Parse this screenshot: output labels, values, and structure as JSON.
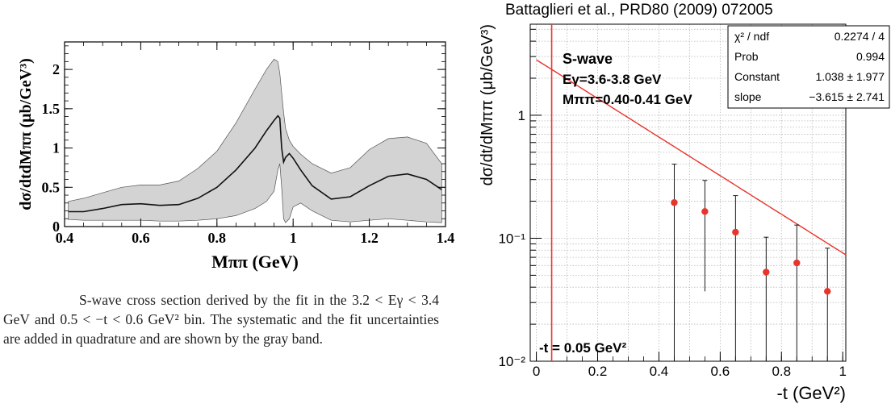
{
  "caption": {
    "line1": "S-wave cross section derived by the fit in the 3.2 <",
    "line2": "Eγ < 3.4 GeV and 0.5 < −t < 0.6 GeV² bin. The systematic",
    "line3": "and the fit uncertainties are added in quadrature and are shown",
    "line4": "by the gray band."
  },
  "chart_data": [
    {
      "type": "line",
      "xlabel": "Mππ (GeV)",
      "ylabel": "dσ/dtdMππ (μb/GeV³)",
      "xlim": [
        0.4,
        1.4
      ],
      "ylim": [
        0,
        2.35
      ],
      "xticks": [
        0.4,
        0.6,
        0.8,
        1,
        1.2,
        1.4
      ],
      "xtick_labels": [
        "0.4",
        "0.6",
        "0.8",
        "1",
        "1.2",
        "1.4"
      ],
      "yticks": [
        0,
        0.5,
        1,
        1.5,
        2
      ],
      "ytick_labels": [
        "0",
        "0.5",
        "1",
        "1.5",
        "2"
      ],
      "grid": false,
      "colors": {
        "band": "#d3d3d3",
        "line": "#111111"
      },
      "series": [
        {
          "x": [
            0.41,
            0.45,
            0.5,
            0.55,
            0.6,
            0.65,
            0.7,
            0.75,
            0.8,
            0.85,
            0.9,
            0.93,
            0.95,
            0.96,
            0.965,
            0.97,
            0.975,
            0.98,
            0.99,
            1.0,
            1.02,
            1.05,
            1.1,
            1.15,
            1.2,
            1.25,
            1.3,
            1.35,
            1.39
          ],
          "y": [
            0.19,
            0.19,
            0.23,
            0.28,
            0.29,
            0.27,
            0.28,
            0.36,
            0.5,
            0.72,
            1.0,
            1.22,
            1.35,
            1.41,
            1.38,
            1.0,
            0.82,
            0.88,
            0.93,
            0.87,
            0.72,
            0.52,
            0.35,
            0.38,
            0.52,
            0.64,
            0.67,
            0.6,
            0.47
          ],
          "band_lower": [
            0.09,
            0.08,
            0.08,
            0.08,
            0.08,
            0.07,
            0.07,
            0.08,
            0.1,
            0.14,
            0.23,
            0.32,
            0.45,
            0.72,
            0.8,
            0.5,
            0.1,
            0.05,
            0.1,
            0.25,
            0.3,
            0.2,
            0.08,
            0.06,
            0.08,
            0.1,
            0.08,
            0.06,
            0.05
          ],
          "band_upper": [
            0.32,
            0.36,
            0.43,
            0.5,
            0.53,
            0.53,
            0.58,
            0.74,
            0.96,
            1.32,
            1.75,
            2.0,
            2.13,
            2.1,
            1.95,
            1.7,
            1.45,
            1.25,
            1.1,
            1.02,
            0.92,
            0.8,
            0.68,
            0.75,
            0.98,
            1.12,
            1.14,
            1.06,
            0.8
          ]
        }
      ]
    },
    {
      "type": "scatter",
      "title": "Battaglieri et al., PRD80 (2009) 072005",
      "xlabel": "-t (GeV²)",
      "ylabel": "dσ/dt/dMππ (μb/GeV³)",
      "xlim": [
        -0.02,
        1.01
      ],
      "ylim": [
        0.01,
        5.5
      ],
      "yscale": "log",
      "xticks": [
        0,
        0.2,
        0.4,
        0.6,
        0.8,
        1
      ],
      "xtick_labels": [
        "0",
        "0.2",
        "0.4",
        "0.6",
        "0.8",
        "1"
      ],
      "ytick_labels": {
        "1e-2": "10⁻²",
        "1e-1": "10⁻¹",
        "1": "1"
      },
      "grid": true,
      "colors": {
        "points": "#e8352b",
        "fit": "#e8352b",
        "cut_line": "#e8352b",
        "grid": "#b8b8b8"
      },
      "annotations": {
        "line1": "S-wave",
        "line2": "Eγ=3.6-3.8 GeV",
        "line3": "Mππ=0.40-0.41 GeV",
        "cut": "-t = 0.05 GeV²"
      },
      "cut_x": 0.05,
      "fit": {
        "constant": 1.038,
        "slope": -3.615
      },
      "stats_box": [
        {
          "name": "χ² / ndf",
          "value": "0.2274 / 4"
        },
        {
          "name": "Prob",
          "value": "0.994"
        },
        {
          "name": "Constant",
          "value": "1.038 ± 1.977"
        },
        {
          "name": "slope",
          "value": "−3.615 ± 2.741"
        }
      ],
      "points": [
        {
          "x": 0.45,
          "y": 0.195,
          "y_low": 0.01,
          "y_high": 0.4
        },
        {
          "x": 0.55,
          "y": 0.165,
          "y_low": 0.037,
          "y_high": 0.295
        },
        {
          "x": 0.65,
          "y": 0.112,
          "y_low": 0.01,
          "y_high": 0.222
        },
        {
          "x": 0.75,
          "y": 0.053,
          "y_low": 0.01,
          "y_high": 0.102
        },
        {
          "x": 0.85,
          "y": 0.063,
          "y_low": 0.01,
          "y_high": 0.128
        },
        {
          "x": 0.95,
          "y": 0.037,
          "y_low": 0.01,
          "y_high": 0.083
        }
      ]
    }
  ]
}
